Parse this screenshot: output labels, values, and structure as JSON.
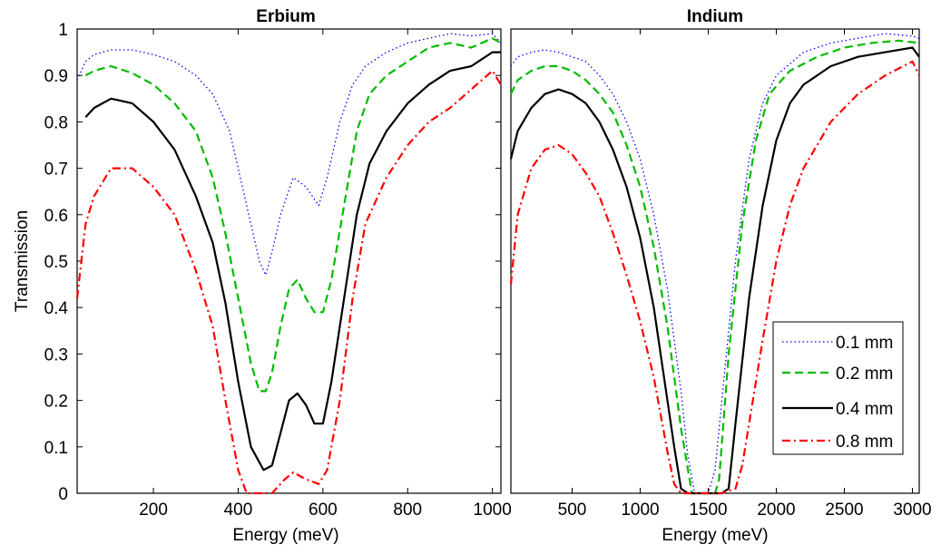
{
  "chart_data": [
    {
      "type": "line",
      "title": "Erbium",
      "xlabel": "Energy (meV)",
      "ylabel": "Transmission",
      "xlim": [
        20,
        1020
      ],
      "ylim": [
        0,
        1
      ],
      "xticks": [
        200,
        400,
        600,
        800,
        1000
      ],
      "yticks": [
        0,
        0.1,
        0.2,
        0.3,
        0.4,
        0.5,
        0.6,
        0.7,
        0.8,
        0.9,
        1
      ],
      "ytick_labels": [
        "0",
        "0.1",
        "0.2",
        "0.3",
        "0.4",
        "0.5",
        "0.6",
        "0.7",
        "0.8",
        "0.9",
        "1"
      ],
      "grid": false,
      "series": [
        {
          "name": "0.1 mm",
          "color": "#0000ff",
          "style": "dotted",
          "x": [
            20,
            40,
            60,
            100,
            150,
            200,
            250,
            300,
            340,
            380,
            420,
            450,
            465,
            480,
            500,
            530,
            560,
            590,
            610,
            640,
            670,
            700,
            750,
            800,
            850,
            900,
            950,
            1000,
            1020
          ],
          "y": [
            0.89,
            0.93,
            0.945,
            0.955,
            0.955,
            0.945,
            0.93,
            0.9,
            0.86,
            0.78,
            0.62,
            0.5,
            0.47,
            0.52,
            0.6,
            0.68,
            0.66,
            0.62,
            0.68,
            0.8,
            0.88,
            0.92,
            0.95,
            0.97,
            0.98,
            0.99,
            0.985,
            0.99,
            0.97
          ]
        },
        {
          "name": "0.2 mm",
          "color": "#00bb00",
          "style": "dashed",
          "x": [
            40,
            60,
            100,
            150,
            200,
            250,
            300,
            340,
            370,
            400,
            430,
            450,
            465,
            480,
            500,
            520,
            540,
            560,
            580,
            600,
            620,
            650,
            680,
            710,
            750,
            800,
            850,
            900,
            950,
            1000,
            1020
          ],
          "y": [
            0.9,
            0.91,
            0.92,
            0.905,
            0.88,
            0.84,
            0.78,
            0.68,
            0.56,
            0.42,
            0.28,
            0.22,
            0.22,
            0.26,
            0.36,
            0.44,
            0.46,
            0.42,
            0.39,
            0.39,
            0.46,
            0.62,
            0.78,
            0.86,
            0.9,
            0.93,
            0.96,
            0.97,
            0.96,
            0.98,
            0.97
          ]
        },
        {
          "name": "0.4 mm",
          "color": "#000000",
          "style": "solid",
          "x": [
            40,
            60,
            100,
            150,
            200,
            250,
            300,
            340,
            370,
            400,
            430,
            460,
            480,
            500,
            520,
            540,
            560,
            580,
            600,
            620,
            650,
            680,
            710,
            750,
            800,
            850,
            900,
            950,
            1000,
            1020
          ],
          "y": [
            0.81,
            0.83,
            0.85,
            0.84,
            0.8,
            0.74,
            0.64,
            0.54,
            0.41,
            0.24,
            0.1,
            0.05,
            0.06,
            0.13,
            0.2,
            0.215,
            0.19,
            0.15,
            0.15,
            0.24,
            0.42,
            0.6,
            0.71,
            0.78,
            0.84,
            0.88,
            0.91,
            0.92,
            0.95,
            0.95
          ]
        },
        {
          "name": "0.8 mm",
          "color": "#ff0000",
          "style": "dashdot",
          "x": [
            20,
            40,
            60,
            100,
            150,
            200,
            250,
            300,
            340,
            370,
            400,
            420,
            450,
            480,
            510,
            530,
            560,
            590,
            610,
            640,
            670,
            700,
            750,
            800,
            850,
            900,
            950,
            1000,
            1020
          ],
          "y": [
            0.42,
            0.58,
            0.64,
            0.7,
            0.7,
            0.66,
            0.6,
            0.48,
            0.36,
            0.2,
            0.05,
            0.0,
            0.0,
            0.0,
            0.03,
            0.045,
            0.03,
            0.02,
            0.05,
            0.2,
            0.42,
            0.58,
            0.68,
            0.75,
            0.8,
            0.83,
            0.87,
            0.91,
            0.88
          ]
        }
      ]
    },
    {
      "type": "line",
      "title": "Indium",
      "xlabel": "Energy (meV)",
      "ylabel": "",
      "xlim": [
        50,
        3050
      ],
      "ylim": [
        0,
        1
      ],
      "xticks": [
        500,
        1000,
        1500,
        2000,
        2500,
        3000
      ],
      "yticks": [],
      "grid": false,
      "legend_position": "bottom-right",
      "series": [
        {
          "name": "0.1 mm",
          "color": "#0000ff",
          "style": "dotted",
          "x": [
            50,
            100,
            200,
            300,
            400,
            500,
            600,
            700,
            800,
            900,
            1000,
            1100,
            1200,
            1300,
            1350,
            1400,
            1450,
            1500,
            1550,
            1600,
            1700,
            1800,
            1900,
            2000,
            2200,
            2400,
            2600,
            2800,
            3000,
            3050
          ],
          "y": [
            0.92,
            0.94,
            0.95,
            0.955,
            0.95,
            0.94,
            0.93,
            0.9,
            0.86,
            0.8,
            0.72,
            0.6,
            0.44,
            0.22,
            0.08,
            0.0,
            0.0,
            0.0,
            0.05,
            0.2,
            0.5,
            0.72,
            0.84,
            0.9,
            0.95,
            0.97,
            0.98,
            0.99,
            0.985,
            0.98
          ]
        },
        {
          "name": "0.2 mm",
          "color": "#00bb00",
          "style": "dashed",
          "x": [
            50,
            100,
            200,
            300,
            400,
            500,
            600,
            700,
            800,
            900,
            1000,
            1100,
            1200,
            1300,
            1380,
            1400,
            1500,
            1550,
            1580,
            1650,
            1750,
            1850,
            1950,
            2100,
            2300,
            2500,
            2700,
            2900,
            3050
          ],
          "y": [
            0.86,
            0.89,
            0.91,
            0.92,
            0.92,
            0.91,
            0.89,
            0.86,
            0.82,
            0.75,
            0.66,
            0.53,
            0.36,
            0.14,
            0.0,
            0.0,
            0.0,
            0.0,
            0.03,
            0.3,
            0.58,
            0.76,
            0.86,
            0.91,
            0.94,
            0.96,
            0.97,
            0.975,
            0.97
          ]
        },
        {
          "name": "0.4 mm",
          "color": "#000000",
          "style": "solid",
          "x": [
            50,
            100,
            200,
            300,
            400,
            500,
            600,
            700,
            800,
            900,
            1000,
            1100,
            1200,
            1250,
            1300,
            1350,
            1400,
            1500,
            1600,
            1650,
            1700,
            1800,
            1900,
            2000,
            2100,
            2200,
            2400,
            2600,
            2800,
            3000,
            3050
          ],
          "y": [
            0.72,
            0.78,
            0.83,
            0.86,
            0.87,
            0.86,
            0.84,
            0.8,
            0.74,
            0.66,
            0.55,
            0.4,
            0.2,
            0.1,
            0.01,
            0.0,
            0.0,
            0.0,
            0.0,
            0.01,
            0.15,
            0.42,
            0.62,
            0.76,
            0.84,
            0.88,
            0.92,
            0.94,
            0.95,
            0.96,
            0.94
          ]
        },
        {
          "name": "0.8 mm",
          "color": "#ff0000",
          "style": "dashdot",
          "x": [
            50,
            100,
            200,
            300,
            400,
            500,
            600,
            700,
            800,
            900,
            1000,
            1100,
            1150,
            1200,
            1250,
            1300,
            1400,
            1600,
            1700,
            1750,
            1800,
            1900,
            2000,
            2100,
            2200,
            2400,
            2600,
            2800,
            3000,
            3050
          ],
          "y": [
            0.45,
            0.6,
            0.7,
            0.74,
            0.75,
            0.73,
            0.69,
            0.64,
            0.56,
            0.47,
            0.37,
            0.25,
            0.17,
            0.09,
            0.02,
            0.0,
            0.0,
            0.0,
            0.01,
            0.06,
            0.15,
            0.33,
            0.5,
            0.62,
            0.7,
            0.8,
            0.86,
            0.9,
            0.93,
            0.9
          ]
        }
      ]
    }
  ]
}
